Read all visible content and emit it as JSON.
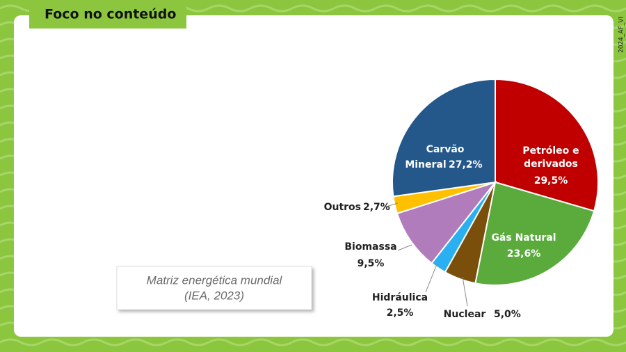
{
  "header": {
    "title": "Foco no conteúdo",
    "code": "2024_AF_VI"
  },
  "caption": {
    "lines": [
      "Matriz energética mundial",
      "(IEA, 2023)"
    ]
  },
  "chart_data": {
    "type": "pie",
    "categories": [
      "Petróleo e derivados",
      "Gás Natural",
      "Nuclear",
      "Hidráulica",
      "Biomassa",
      "Outros",
      "Carvão Mineral"
    ],
    "values": [
      29.5,
      23.6,
      5.0,
      2.5,
      9.5,
      2.7,
      27.2
    ],
    "value_labels": [
      "29,5%",
      "23,6%",
      "5,0%",
      "2,5%",
      "9,5%",
      "2,7%",
      "27,2%"
    ],
    "colors": [
      "#c00000",
      "#5aab3c",
      "#7a4f0c",
      "#2ab0f0",
      "#b07cbc",
      "#ffc000",
      "#24578a"
    ]
  }
}
